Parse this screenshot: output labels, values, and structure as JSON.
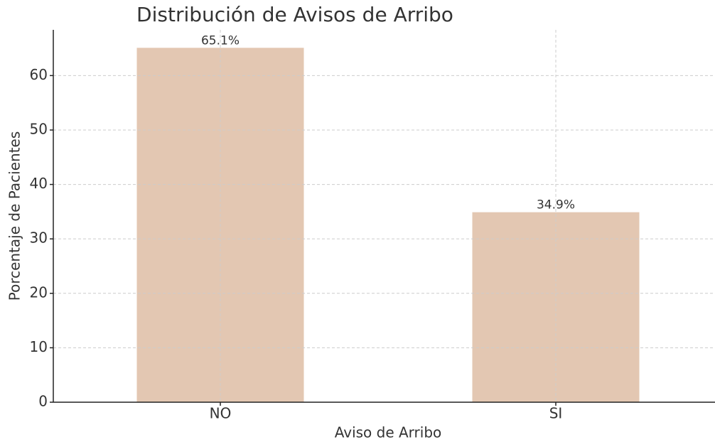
{
  "chart_data": {
    "type": "bar",
    "title": "Distribución de Avisos de Arribo",
    "xlabel": "Aviso de Arribo",
    "ylabel": "Porcentaje de Pacientes",
    "categories": [
      "NO",
      "SI"
    ],
    "values": [
      65.1,
      34.9
    ],
    "value_labels": [
      "65.1%",
      "34.9%"
    ],
    "color": "#e3c7b2",
    "ylim": [
      0,
      68.4
    ],
    "yticks": [
      0,
      10,
      20,
      30,
      40,
      50,
      60
    ],
    "grid": true
  }
}
